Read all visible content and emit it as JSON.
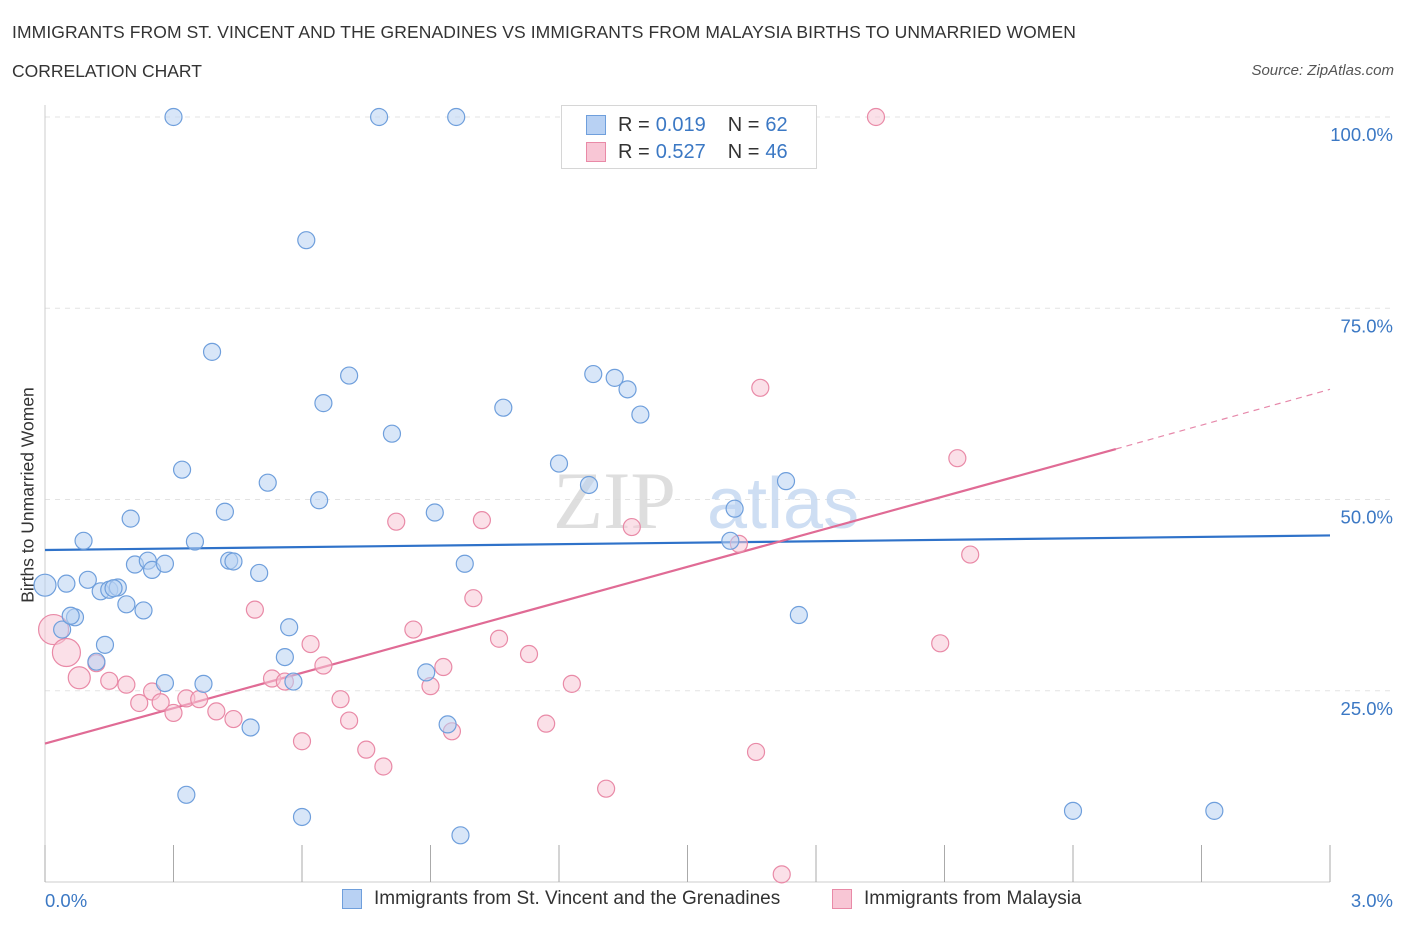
{
  "header": {
    "title": "IMMIGRANTS FROM ST. VINCENT AND THE GRENADINES VS IMMIGRANTS FROM MALAYSIA BIRTHS TO UNMARRIED WOMEN",
    "subtitle": "CORRELATION CHART",
    "source": "Source: ZipAtlas.com"
  },
  "watermark": "ZIPatlas",
  "colors": {
    "blue_fill": "#b8d1f3",
    "blue_stroke": "#6f9fdc",
    "blue_line": "#2f72c9",
    "pink_fill": "#f8c6d5",
    "pink_stroke": "#e98aa7",
    "pink_line": "#e06b95",
    "accent_text": "#3b78c4",
    "grid": "#e3e3e3"
  },
  "legend": {
    "series1": {
      "r_label": "R = ",
      "r_value": "0.019",
      "n_label": "N = ",
      "n_value": "62"
    },
    "series2": {
      "r_label": "R = ",
      "r_value": "0.527",
      "n_label": "N = ",
      "n_value": "46"
    }
  },
  "chart_data": {
    "type": "scatter",
    "title": "IMMIGRANTS FROM ST. VINCENT AND THE GRENADINES VS IMMIGRANTS FROM MALAYSIA BIRTHS TO UNMARRIED WOMEN",
    "subtitle": "CORRELATION CHART",
    "xlabel": "",
    "ylabel": "Births to Unmarried Women",
    "xlim": [
      0,
      3.0
    ],
    "ylim": [
      0,
      100
    ],
    "x_tick_labels": [
      "0.0%",
      "3.0%"
    ],
    "y_tick_labels": [
      "100.0%",
      "75.0%",
      "50.0%",
      "25.0%"
    ],
    "y_ticks": [
      100,
      75,
      50,
      25
    ],
    "grid": true,
    "legend_position": "top-center",
    "series": [
      {
        "name": "Immigrants from St. Vincent and the Grenadines",
        "color": "#b8d1f3",
        "R": 0.019,
        "N": 62,
        "trend": {
          "x": [
            0.0,
            3.0
          ],
          "y": [
            43.4,
            45.3
          ],
          "style": "solid"
        },
        "points": [
          [
            0.0,
            38.8
          ],
          [
            0.04,
            33.0
          ],
          [
            0.05,
            39.0
          ],
          [
            0.07,
            34.6
          ],
          [
            0.06,
            34.8
          ],
          [
            0.09,
            44.6
          ],
          [
            0.1,
            39.5
          ],
          [
            0.12,
            28.8
          ],
          [
            0.13,
            38.0
          ],
          [
            0.14,
            31.0
          ],
          [
            0.15,
            38.2
          ],
          [
            0.17,
            38.5
          ],
          [
            0.19,
            36.3
          ],
          [
            0.2,
            47.5
          ],
          [
            0.21,
            41.5
          ],
          [
            0.23,
            35.5
          ],
          [
            0.24,
            42.0
          ],
          [
            0.25,
            40.8
          ],
          [
            0.28,
            41.6
          ],
          [
            0.28,
            26.0
          ],
          [
            0.3,
            100.0
          ],
          [
            0.32,
            53.9
          ],
          [
            0.33,
            11.4
          ],
          [
            0.35,
            44.5
          ],
          [
            0.37,
            25.9
          ],
          [
            0.39,
            69.3
          ],
          [
            0.42,
            48.4
          ],
          [
            0.43,
            42.0
          ],
          [
            0.44,
            41.9
          ],
          [
            0.48,
            20.2
          ],
          [
            0.5,
            40.4
          ],
          [
            0.52,
            52.2
          ],
          [
            0.56,
            29.4
          ],
          [
            0.57,
            33.3
          ],
          [
            0.58,
            26.2
          ],
          [
            0.6,
            8.5
          ],
          [
            0.61,
            83.9
          ],
          [
            0.64,
            49.9
          ],
          [
            0.65,
            62.6
          ],
          [
            0.71,
            66.2
          ],
          [
            0.78,
            100.0
          ],
          [
            0.81,
            58.6
          ],
          [
            0.89,
            27.4
          ],
          [
            0.91,
            48.3
          ],
          [
            0.94,
            20.6
          ],
          [
            0.96,
            100.0
          ],
          [
            0.97,
            6.1
          ],
          [
            0.98,
            41.6
          ],
          [
            1.07,
            62.0
          ],
          [
            1.2,
            54.7
          ],
          [
            1.27,
            51.9
          ],
          [
            1.28,
            66.4
          ],
          [
            1.33,
            65.9
          ],
          [
            1.36,
            64.4
          ],
          [
            1.39,
            61.1
          ],
          [
            1.6,
            44.6
          ],
          [
            1.61,
            48.8
          ],
          [
            1.73,
            52.4
          ],
          [
            1.76,
            34.9
          ],
          [
            2.4,
            9.3
          ],
          [
            2.73,
            9.3
          ],
          [
            0.16,
            38.4
          ]
        ]
      },
      {
        "name": "Immigrants from Malaysia",
        "color": "#f8c6d5",
        "R": 0.527,
        "N": 46,
        "trend": {
          "x": [
            0.0,
            2.5
          ],
          "y": [
            18.1,
            56.6
          ],
          "style": "solid",
          "dashed_extension": {
            "x": [
              2.5,
              3.0
            ],
            "y": [
              56.6,
              64.4
            ]
          }
        },
        "points": [
          [
            0.02,
            33.0
          ],
          [
            0.05,
            30.0
          ],
          [
            0.08,
            26.7
          ],
          [
            0.12,
            28.6
          ],
          [
            0.15,
            26.3
          ],
          [
            0.19,
            25.8
          ],
          [
            0.22,
            23.4
          ],
          [
            0.25,
            24.9
          ],
          [
            0.27,
            23.5
          ],
          [
            0.3,
            22.1
          ],
          [
            0.33,
            24.0
          ],
          [
            0.36,
            23.9
          ],
          [
            0.4,
            22.3
          ],
          [
            0.44,
            21.3
          ],
          [
            0.49,
            35.6
          ],
          [
            0.53,
            26.6
          ],
          [
            0.56,
            26.2
          ],
          [
            0.6,
            18.4
          ],
          [
            0.62,
            31.1
          ],
          [
            0.65,
            28.3
          ],
          [
            0.69,
            23.9
          ],
          [
            0.71,
            21.1
          ],
          [
            0.75,
            17.3
          ],
          [
            0.79,
            15.1
          ],
          [
            0.82,
            47.1
          ],
          [
            0.86,
            33.0
          ],
          [
            0.9,
            25.6
          ],
          [
            0.93,
            28.1
          ],
          [
            0.95,
            19.7
          ],
          [
            1.0,
            37.1
          ],
          [
            1.02,
            47.3
          ],
          [
            1.06,
            31.8
          ],
          [
            1.13,
            29.8
          ],
          [
            1.17,
            20.7
          ],
          [
            1.23,
            25.9
          ],
          [
            1.31,
            12.2
          ],
          [
            1.37,
            46.4
          ],
          [
            1.45,
            100.0
          ],
          [
            1.62,
            44.2
          ],
          [
            1.66,
            17.0
          ],
          [
            1.67,
            64.6
          ],
          [
            1.72,
            1.0
          ],
          [
            1.94,
            100.0
          ],
          [
            2.09,
            31.2
          ],
          [
            2.13,
            55.4
          ],
          [
            2.16,
            42.8
          ]
        ]
      }
    ]
  }
}
